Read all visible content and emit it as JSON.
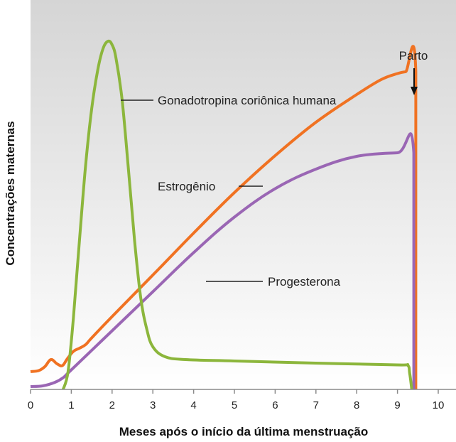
{
  "chart_data": {
    "type": "line",
    "xlabel": "Meses após o início da última menstruação",
    "ylabel": "Concentrações maternas",
    "xlim": [
      0,
      10
    ],
    "ylim": [
      0,
      100
    ],
    "x_ticks": [
      "0",
      "1",
      "2",
      "3",
      "4",
      "5",
      "6",
      "7",
      "8",
      "9",
      "10"
    ],
    "grid": false,
    "background_gradient": [
      "#d5d5d5",
      "#ffffff"
    ],
    "series": [
      {
        "name": "Gonadotropina coriônica humana",
        "color": "#8cb63c",
        "points": [
          [
            0.8,
            0
          ],
          [
            0.92,
            5
          ],
          [
            1.05,
            20
          ],
          [
            1.2,
            42
          ],
          [
            1.35,
            63
          ],
          [
            1.5,
            79
          ],
          [
            1.65,
            90
          ],
          [
            1.78,
            96
          ],
          [
            1.9,
            98
          ],
          [
            2.0,
            97
          ],
          [
            2.1,
            93
          ],
          [
            2.25,
            81
          ],
          [
            2.4,
            62
          ],
          [
            2.55,
            42
          ],
          [
            2.7,
            26
          ],
          [
            2.85,
            17
          ],
          [
            3.0,
            12
          ],
          [
            3.3,
            9.2
          ],
          [
            3.8,
            8.4
          ],
          [
            5.0,
            8.0
          ],
          [
            7.0,
            7.4
          ],
          [
            9.0,
            6.9
          ],
          [
            9.25,
            6.8
          ],
          [
            9.3,
            4.5
          ],
          [
            9.35,
            0
          ]
        ]
      },
      {
        "name": "Estrogênio",
        "color": "#f07222",
        "points": [
          [
            0.0,
            5
          ],
          [
            0.2,
            5.3
          ],
          [
            0.35,
            6.4
          ],
          [
            0.5,
            8.4
          ],
          [
            0.65,
            7.2
          ],
          [
            0.78,
            6.7
          ],
          [
            0.9,
            8.6
          ],
          [
            1.05,
            10.7
          ],
          [
            1.2,
            11.6
          ],
          [
            1.35,
            12.6
          ],
          [
            1.5,
            14.5
          ],
          [
            2.0,
            20.5
          ],
          [
            3.0,
            32.2
          ],
          [
            4.0,
            44
          ],
          [
            5.0,
            55.4
          ],
          [
            6.0,
            65.8
          ],
          [
            7.0,
            75.2
          ],
          [
            8.0,
            83
          ],
          [
            8.6,
            87.2
          ],
          [
            9.0,
            88.9
          ],
          [
            9.2,
            89.4
          ],
          [
            9.45,
            89.4
          ],
          [
            9.45,
            0
          ]
        ]
      },
      {
        "name": "Progesterona",
        "color": "#9a66b4",
        "points": [
          [
            0.0,
            0.8
          ],
          [
            0.3,
            1.0
          ],
          [
            0.6,
            2.0
          ],
          [
            0.8,
            3.3
          ],
          [
            1.0,
            5.5
          ],
          [
            2.0,
            16.5
          ],
          [
            3.0,
            27.5
          ],
          [
            4.0,
            38.5
          ],
          [
            5.0,
            48.5
          ],
          [
            6.0,
            56.5
          ],
          [
            7.0,
            62
          ],
          [
            8.0,
            65.6
          ],
          [
            9.0,
            66.6
          ],
          [
            9.4,
            66.6
          ],
          [
            9.4,
            0
          ]
        ]
      }
    ],
    "annotations": [
      {
        "text": "Gonadotropina coriônica humana",
        "series": "Gonadotropina coriônica humana"
      },
      {
        "text": "Estrogênio",
        "series": "Estrogênio"
      },
      {
        "text": "Progesterona",
        "series": "Progesterona"
      },
      {
        "text": "Parto",
        "at_x": 9.45
      }
    ]
  }
}
